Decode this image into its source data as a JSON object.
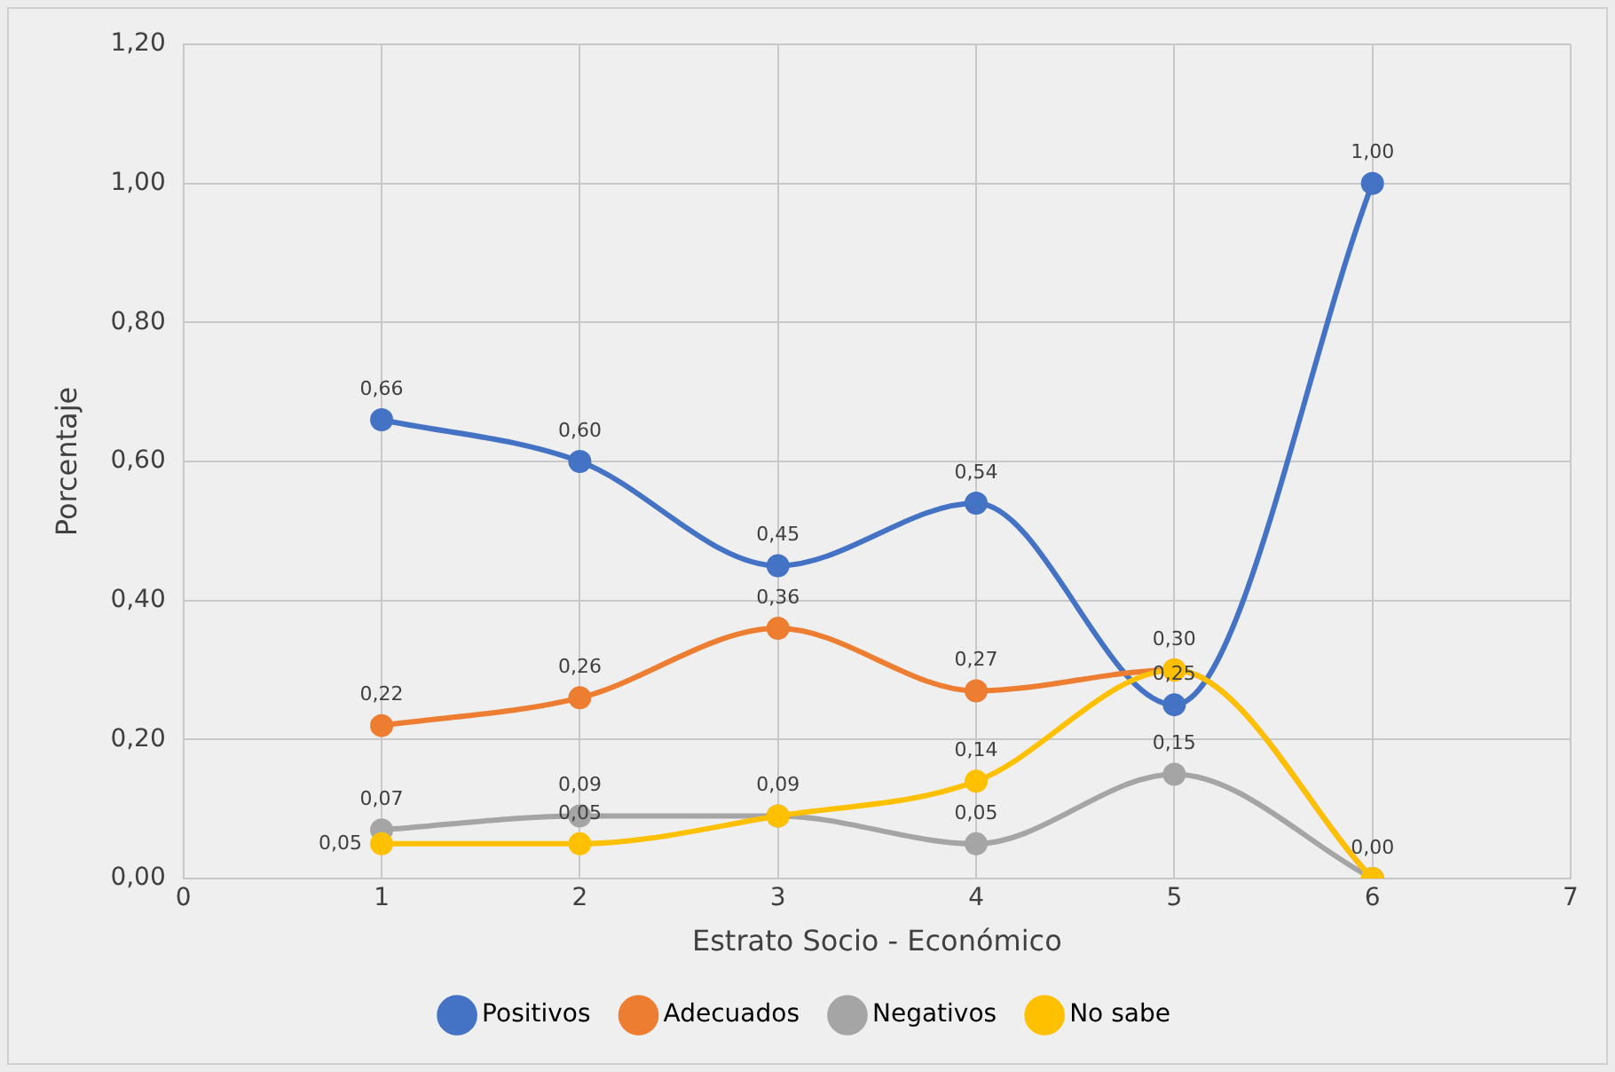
{
  "chart_data": {
    "type": "line",
    "xlabel": "Estrato Socio - Económico",
    "ylabel": "Porcentaje",
    "x": [
      1,
      2,
      3,
      4,
      5,
      6
    ],
    "series": [
      {
        "name": "Positivos",
        "color": "#4472c4",
        "values": [
          0.66,
          0.6,
          0.45,
          0.54,
          0.25,
          1.0
        ],
        "value_labels": [
          "0,66",
          "0,60",
          "0,45",
          "0,54",
          "0,25",
          "1,00"
        ]
      },
      {
        "name": "Adecuados",
        "color": "#ed7d31",
        "values": [
          0.22,
          0.26,
          0.36,
          0.27,
          0.3,
          0.0
        ],
        "value_labels": [
          "0,22",
          "0,26",
          "0,36",
          "0,27",
          "0,30",
          "0,00"
        ]
      },
      {
        "name": "Negativos",
        "color": "#a5a5a5",
        "values": [
          0.07,
          0.09,
          0.09,
          0.05,
          0.15,
          0.0
        ],
        "value_labels": [
          "0,07",
          "0,09",
          "0,09",
          "0,05",
          "0,15",
          null
        ]
      },
      {
        "name": "No sabe",
        "color": "#ffc000",
        "values": [
          0.05,
          0.05,
          0.09,
          0.14,
          0.3,
          0.0
        ],
        "value_labels": [
          "0,05",
          "0,05",
          null,
          "0,14",
          null,
          null
        ]
      }
    ],
    "xlim": [
      0,
      7
    ],
    "xticks": [
      0,
      1,
      2,
      3,
      4,
      5,
      6,
      7
    ],
    "ylim": [
      0,
      1.2
    ],
    "yticks": [
      {
        "value": 0,
        "label": "0,00"
      },
      {
        "value": 0.2,
        "label": "0,20"
      },
      {
        "value": 0.4,
        "label": "0,40"
      },
      {
        "value": 0.6,
        "label": "0,60"
      },
      {
        "value": 0.8,
        "label": "0,80"
      },
      {
        "value": 1,
        "label": "1,00"
      },
      {
        "value": 1.2,
        "label": "1,20"
      }
    ],
    "grid": true,
    "legend": "bottom",
    "marker": "circle",
    "line_style": "solid"
  }
}
